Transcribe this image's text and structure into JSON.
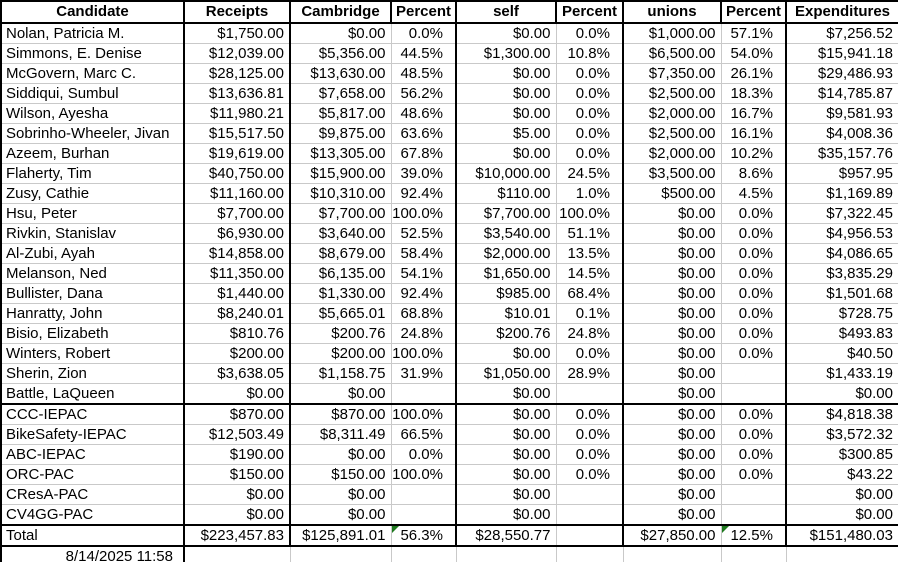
{
  "header": {
    "columns": [
      "Candidate",
      "Receipts",
      "Cambridge",
      "Percent",
      "self",
      "Percent",
      "unions",
      "Percent",
      "Expenditures"
    ]
  },
  "sections": {
    "candidates": [
      {
        "name": "Nolan, Patricia M.",
        "values": [
          "$1,750.00",
          "$0.00",
          "0.0%",
          "$0.00",
          "0.0%",
          "$1,000.00",
          "57.1%",
          "$7,256.52"
        ]
      },
      {
        "name": "Simmons, E. Denise",
        "values": [
          "$12,039.00",
          "$5,356.00",
          "44.5%",
          "$1,300.00",
          "10.8%",
          "$6,500.00",
          "54.0%",
          "$15,941.18"
        ]
      },
      {
        "name": "McGovern, Marc C.",
        "values": [
          "$28,125.00",
          "$13,630.00",
          "48.5%",
          "$0.00",
          "0.0%",
          "$7,350.00",
          "26.1%",
          "$29,486.93"
        ]
      },
      {
        "name": "Siddiqui, Sumbul",
        "values": [
          "$13,636.81",
          "$7,658.00",
          "56.2%",
          "$0.00",
          "0.0%",
          "$2,500.00",
          "18.3%",
          "$14,785.87"
        ]
      },
      {
        "name": "Wilson, Ayesha",
        "values": [
          "$11,980.21",
          "$5,817.00",
          "48.6%",
          "$0.00",
          "0.0%",
          "$2,000.00",
          "16.7%",
          "$9,581.93"
        ]
      },
      {
        "name": "Sobrinho-Wheeler, Jivan",
        "values": [
          "$15,517.50",
          "$9,875.00",
          "63.6%",
          "$5.00",
          "0.0%",
          "$2,500.00",
          "16.1%",
          "$4,008.36"
        ]
      },
      {
        "name": "Azeem, Burhan",
        "values": [
          "$19,619.00",
          "$13,305.00",
          "67.8%",
          "$0.00",
          "0.0%",
          "$2,000.00",
          "10.2%",
          "$35,157.76"
        ]
      },
      {
        "name": "Flaherty, Tim",
        "values": [
          "$40,750.00",
          "$15,900.00",
          "39.0%",
          "$10,000.00",
          "24.5%",
          "$3,500.00",
          "8.6%",
          "$957.95"
        ]
      },
      {
        "name": "Zusy, Cathie",
        "values": [
          "$11,160.00",
          "$10,310.00",
          "92.4%",
          "$110.00",
          "1.0%",
          "$500.00",
          "4.5%",
          "$1,169.89"
        ]
      },
      {
        "name": "Hsu, Peter",
        "values": [
          "$7,700.00",
          "$7,700.00",
          "100.0%",
          "$7,700.00",
          "100.0%",
          "$0.00",
          "0.0%",
          "$7,322.45"
        ]
      },
      {
        "name": "Rivkin, Stanislav",
        "values": [
          "$6,930.00",
          "$3,640.00",
          "52.5%",
          "$3,540.00",
          "51.1%",
          "$0.00",
          "0.0%",
          "$4,956.53"
        ]
      },
      {
        "name": "Al-Zubi, Ayah",
        "values": [
          "$14,858.00",
          "$8,679.00",
          "58.4%",
          "$2,000.00",
          "13.5%",
          "$0.00",
          "0.0%",
          "$4,086.65"
        ]
      },
      {
        "name": "Melanson, Ned",
        "values": [
          "$11,350.00",
          "$6,135.00",
          "54.1%",
          "$1,650.00",
          "14.5%",
          "$0.00",
          "0.0%",
          "$3,835.29"
        ]
      },
      {
        "name": "Bullister, Dana",
        "values": [
          "$1,440.00",
          "$1,330.00",
          "92.4%",
          "$985.00",
          "68.4%",
          "$0.00",
          "0.0%",
          "$1,501.68"
        ]
      },
      {
        "name": "Hanratty, John",
        "values": [
          "$8,240.01",
          "$5,665.01",
          "68.8%",
          "$10.01",
          "0.1%",
          "$0.00",
          "0.0%",
          "$728.75"
        ]
      },
      {
        "name": "Bisio, Elizabeth",
        "values": [
          "$810.76",
          "$200.76",
          "24.8%",
          "$200.76",
          "24.8%",
          "$0.00",
          "0.0%",
          "$493.83"
        ]
      },
      {
        "name": "Winters, Robert",
        "values": [
          "$200.00",
          "$200.00",
          "100.0%",
          "$0.00",
          "0.0%",
          "$0.00",
          "0.0%",
          "$40.50"
        ]
      },
      {
        "name": "Sherin, Zion",
        "values": [
          "$3,638.05",
          "$1,158.75",
          "31.9%",
          "$1,050.00",
          "28.9%",
          "$0.00",
          "",
          "$1,433.19"
        ]
      },
      {
        "name": "Battle, LaQueen",
        "values": [
          "$0.00",
          "$0.00",
          "",
          "$0.00",
          "",
          "$0.00",
          "",
          "$0.00"
        ]
      }
    ],
    "pacs": [
      {
        "name": "CCC-IEPAC",
        "values": [
          "$870.00",
          "$870.00",
          "100.0%",
          "$0.00",
          "0.0%",
          "$0.00",
          "0.0%",
          "$4,818.38"
        ]
      },
      {
        "name": "BikeSafety-IEPAC",
        "values": [
          "$12,503.49",
          "$8,311.49",
          "66.5%",
          "$0.00",
          "0.0%",
          "$0.00",
          "0.0%",
          "$3,572.32"
        ]
      },
      {
        "name": "ABC-IEPAC",
        "values": [
          "$190.00",
          "$0.00",
          "0.0%",
          "$0.00",
          "0.0%",
          "$0.00",
          "0.0%",
          "$300.85"
        ]
      },
      {
        "name": "ORC-PAC",
        "values": [
          "$150.00",
          "$150.00",
          "100.0%",
          "$0.00",
          "0.0%",
          "$0.00",
          "0.0%",
          "$43.22"
        ]
      },
      {
        "name": "CResA-PAC",
        "values": [
          "$0.00",
          "$0.00",
          "",
          "$0.00",
          "",
          "$0.00",
          "",
          "$0.00"
        ]
      },
      {
        "name": "CV4GG-PAC",
        "values": [
          "$0.00",
          "$0.00",
          "",
          "$0.00",
          "",
          "$0.00",
          "",
          "$0.00"
        ]
      }
    ]
  },
  "total": {
    "label": "Total",
    "values": [
      "$223,457.83",
      "$125,891.01",
      "56.3%",
      "$28,550.77",
      "",
      "$27,850.00",
      "12.5%",
      "$151,480.03"
    ],
    "flagged_value_indexes": [
      2,
      6
    ]
  },
  "footer": {
    "timestamp": "8/14/2025 11:58"
  },
  "colors": {
    "grid": "#c9c9c9",
    "border": "#000000",
    "error_triangle": "#1e7a1e",
    "background": "#ffffff",
    "text": "#000000"
  }
}
